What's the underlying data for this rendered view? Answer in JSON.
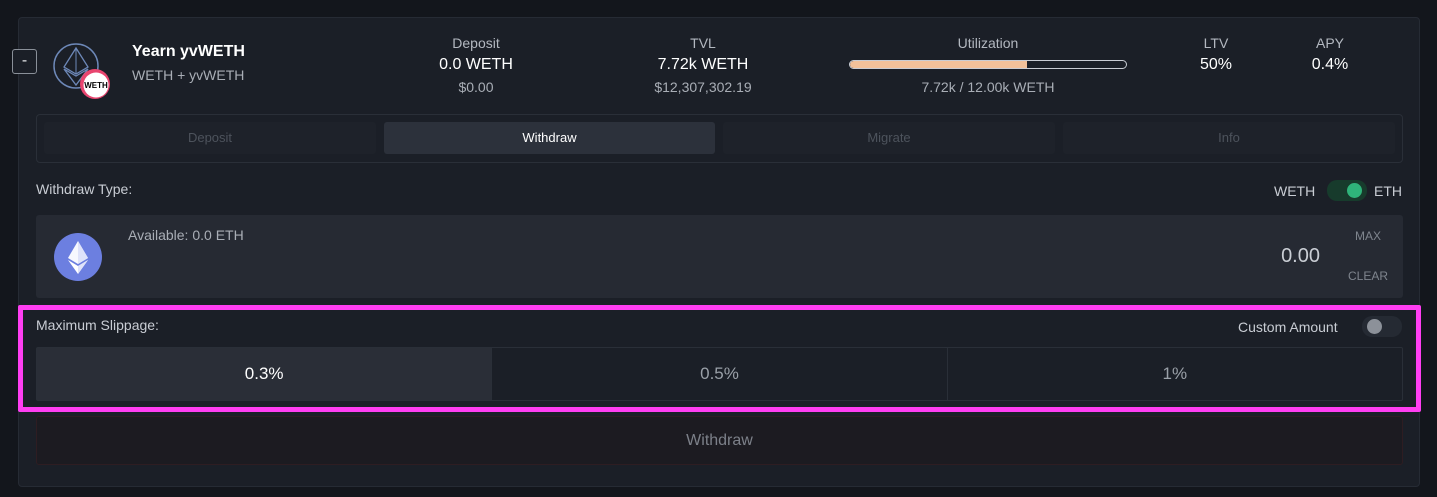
{
  "vault": {
    "name": "Yearn yvWETH",
    "pair": "WETH + yvWETH",
    "badge": "WETH",
    "collapse_label": "-"
  },
  "stats": {
    "deposit": {
      "label": "Deposit",
      "value": "0.0 WETH",
      "usd": "$0.00"
    },
    "tvl": {
      "label": "TVL",
      "value": "7.72k WETH",
      "usd": "$12,307,302.19"
    },
    "utilization": {
      "label": "Utilization",
      "text": "7.72k / 12.00k WETH",
      "fraction": 0.643
    },
    "ltv": {
      "label": "LTV",
      "value": "50%"
    },
    "apy": {
      "label": "APY",
      "value": "0.4%"
    }
  },
  "tabs": [
    {
      "label": "Deposit",
      "active": false
    },
    {
      "label": "Withdraw",
      "active": true
    },
    {
      "label": "Migrate",
      "active": false
    },
    {
      "label": "Info",
      "active": false
    }
  ],
  "withdraw": {
    "type_label": "Withdraw Type:",
    "toggle_left": "WETH",
    "toggle_right": "ETH",
    "available": "Available: 0.0 ETH",
    "amount": "0.00",
    "max_label": "MAX",
    "clear_label": "CLEAR"
  },
  "slippage": {
    "label": "Maximum Slippage:",
    "custom_label": "Custom Amount",
    "options": [
      "0.3%",
      "0.5%",
      "1%"
    ],
    "selected": "0.3%"
  },
  "action": {
    "withdraw_label": "Withdraw"
  },
  "colors": {
    "accent_green": "#2fb37a",
    "highlight": "#ff3ef2",
    "util_fill": "#f2c19a",
    "eth_blue": "#6c7fe0"
  }
}
